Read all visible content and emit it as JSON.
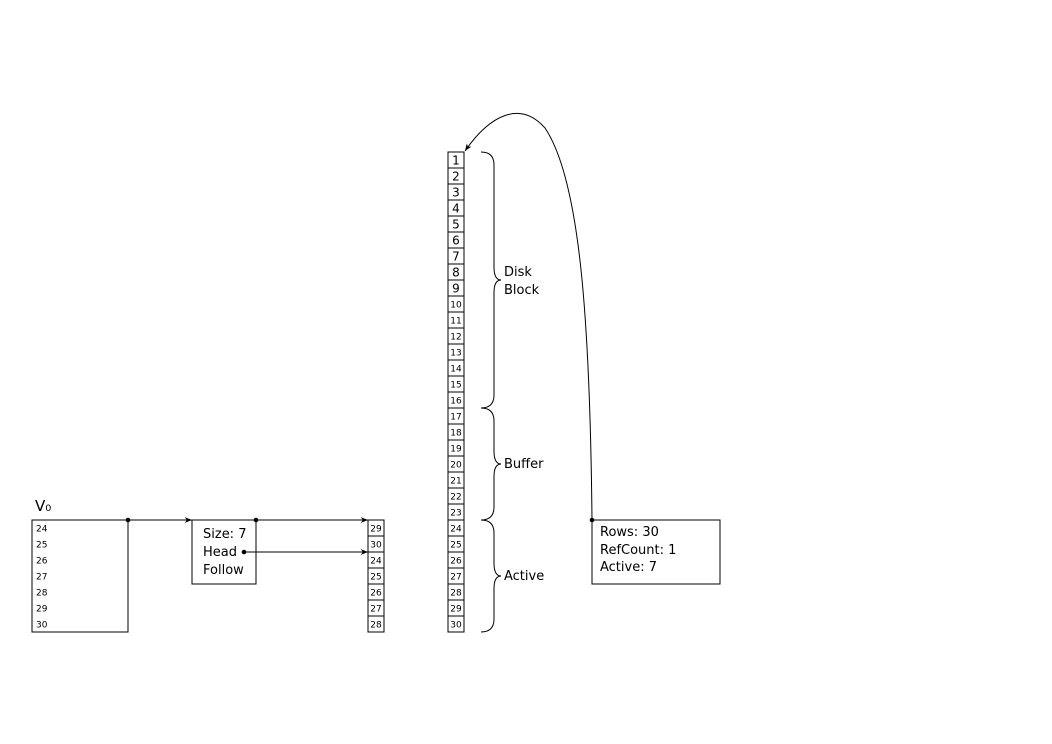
{
  "vector": {
    "name": "V₀",
    "rows": [
      "24",
      "25",
      "26",
      "27",
      "28",
      "29",
      "30"
    ]
  },
  "selection": {
    "size_label": "Size: 7",
    "head_label": "Head",
    "follow_label": "Follow"
  },
  "ring": {
    "rows": [
      "29",
      "30",
      "24",
      "25",
      "26",
      "27",
      "28"
    ]
  },
  "table": {
    "rows": [
      "1",
      "2",
      "3",
      "4",
      "5",
      "6",
      "7",
      "8",
      "9",
      "10",
      "11",
      "12",
      "13",
      "14",
      "15",
      "16",
      "17",
      "18",
      "19",
      "20",
      "21",
      "22",
      "23",
      "24",
      "25",
      "26",
      "27",
      "28",
      "29",
      "30"
    ]
  },
  "braces": {
    "disk_line1": "Disk",
    "disk_line2": "Block",
    "buffer": "Buffer",
    "active": "Active"
  },
  "info": {
    "rows_label": "Rows: 30",
    "refcount_label": "RefCount: 1",
    "active_label": "Active: 7"
  }
}
